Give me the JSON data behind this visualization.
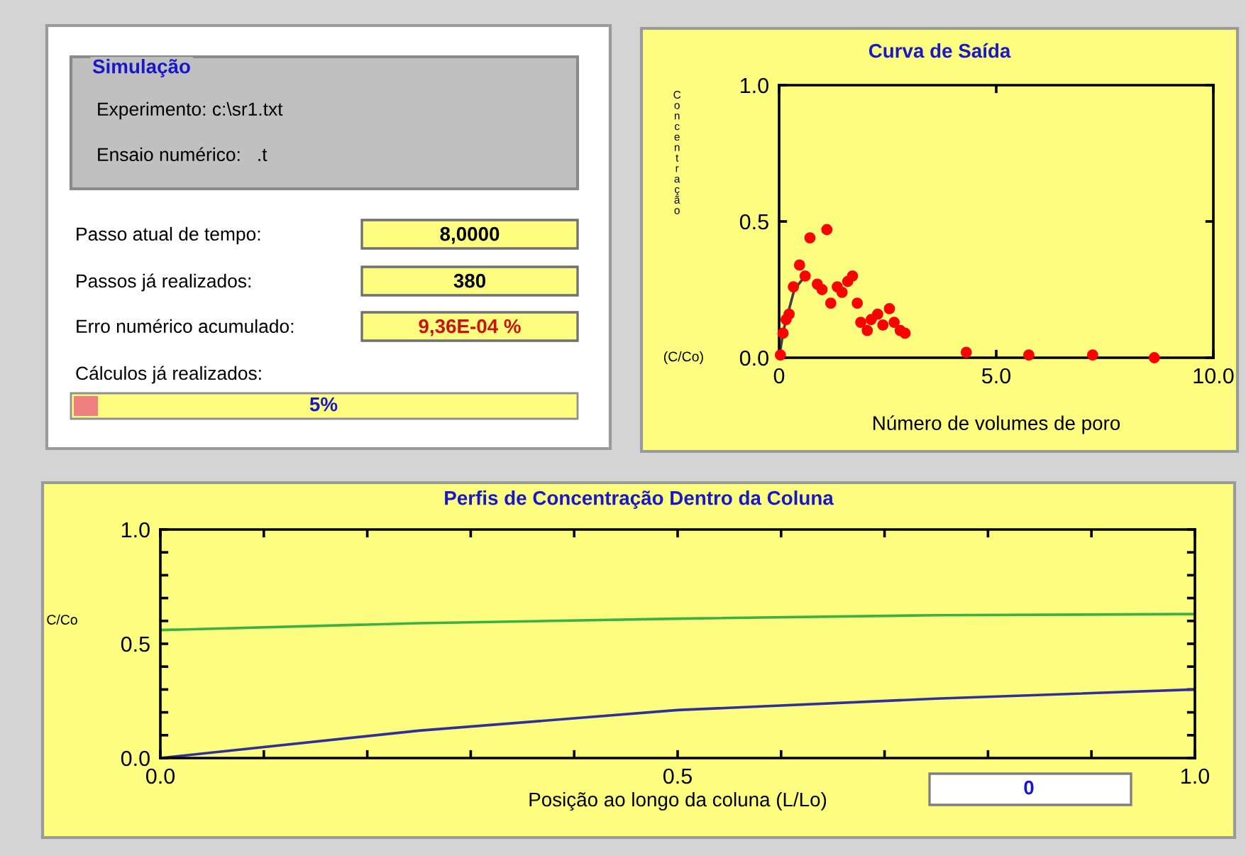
{
  "chart_data": [
    {
      "type": "other",
      "title": "Simulação",
      "annotations": [
        "Experimento: c:\\sr1.txt",
        "Ensaio numérico:   .t",
        "Passo atual de tempo:",
        "8,0000",
        "Passos já realizados:",
        "380",
        "Erro numérico acumulado:",
        "9,36E-04 %",
        "Cálculos já realizados:",
        "5%"
      ]
    },
    {
      "type": "scatter",
      "title": "Curva de Saída",
      "xlabel": "Número de volumes de poro",
      "ylabel": "Concentração",
      "annotations": [
        "(C/Co)"
      ],
      "xlim": [
        0,
        10
      ],
      "ylim": [
        0,
        1
      ],
      "xticks": [
        0,
        {
          "value": 5,
          "label": "5.0"
        },
        {
          "value": 10,
          "label": "10.0"
        }
      ],
      "yticks": [
        {
          "value": 0,
          "label": "0.0"
        },
        {
          "value": 0.5,
          "label": "0.5"
        },
        {
          "value": 1,
          "label": "1.0"
        }
      ],
      "grid": false,
      "legend": false,
      "series": [
        {
          "type": "scatter",
          "color": "#ff0000",
          "marker": "circle",
          "x": [
            0.03,
            0.09,
            0.16,
            0.23,
            0.33,
            0.47,
            0.6,
            0.71,
            0.88,
            0.99,
            1.1,
            1.19,
            1.34,
            1.45,
            1.58,
            1.69,
            1.8,
            1.88,
            2.03,
            2.12,
            2.27,
            2.39,
            2.54,
            2.65,
            2.79,
            2.9,
            4.31,
            5.75,
            7.22,
            8.64
          ],
          "values": [
            0.01,
            0.09,
            0.14,
            0.16,
            0.26,
            0.34,
            0.3,
            0.44,
            0.27,
            0.25,
            0.47,
            0.2,
            0.26,
            0.24,
            0.28,
            0.3,
            0.2,
            0.13,
            0.1,
            0.14,
            0.16,
            0.12,
            0.18,
            0.13,
            0.1,
            0.09,
            0.02,
            0.01,
            0.01,
            0.0
          ]
        },
        {
          "type": "line",
          "color": "#404040",
          "marker": "none",
          "x": [
            0,
            0.1,
            0.2,
            0.35,
            0.6
          ],
          "values": [
            0,
            0.1,
            0.16,
            0.25,
            0.3
          ]
        }
      ]
    },
    {
      "type": "line",
      "title": "Perfis de Concentração Dentro da Coluna",
      "xlabel": "Posição ao longo da coluna (L/Lo)",
      "ylabel": "C/Co",
      "annotations": [
        "0"
      ],
      "xlim": [
        0,
        1
      ],
      "ylim": [
        0,
        1
      ],
      "xticks": [
        {
          "value": 0,
          "label": "0.0"
        },
        {
          "value": 0.1,
          "label": null
        },
        {
          "value": 0.2,
          "label": null
        },
        {
          "value": 0.3,
          "label": null
        },
        {
          "value": 0.4,
          "label": null
        },
        {
          "value": 0.5,
          "label": "0.5"
        },
        {
          "value": 0.6,
          "label": null
        },
        {
          "value": 0.7,
          "label": null
        },
        {
          "value": 0.8,
          "label": null
        },
        {
          "value": 0.9,
          "label": null
        },
        {
          "value": 1,
          "label": "1.0"
        }
      ],
      "yticks": [
        {
          "value": 0,
          "label": "0.0"
        },
        {
          "value": 0.1,
          "label": null
        },
        {
          "value": 0.2,
          "label": null
        },
        {
          "value": 0.3,
          "label": null
        },
        {
          "value": 0.4,
          "label": null
        },
        {
          "value": 0.5,
          "label": "0.5"
        },
        {
          "value": 0.6,
          "label": null
        },
        {
          "value": 0.7,
          "label": null
        },
        {
          "value": 0.8,
          "label": null
        },
        {
          "value": 0.9,
          "label": null
        },
        {
          "value": 1,
          "label": "1.0"
        }
      ],
      "grid": false,
      "legend": false,
      "marker": "none",
      "series": [
        {
          "color": "#3cb043",
          "x": [
            0,
            0.25,
            0.5,
            0.75,
            1
          ],
          "values": [
            0.56,
            0.59,
            0.61,
            0.625,
            0.63
          ]
        },
        {
          "color": "#303098",
          "x": [
            0,
            0.25,
            0.5,
            0.75,
            1
          ],
          "values": [
            0,
            0.12,
            0.21,
            0.26,
            0.3
          ]
        }
      ]
    }
  ]
}
